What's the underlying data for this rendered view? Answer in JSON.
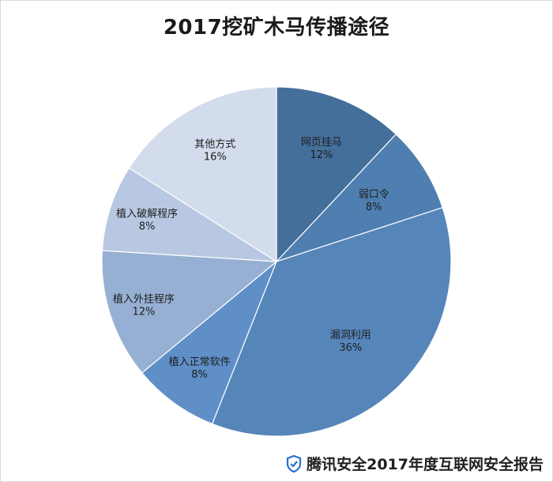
{
  "chart_data": {
    "type": "pie",
    "title": "2017挖矿木马传播途径",
    "slices": [
      {
        "name": "网页挂马",
        "value": 12,
        "label": "12%",
        "color": "#456f9b"
      },
      {
        "name": "弱口令",
        "value": 8,
        "label": "8%",
        "color": "#4f7fb0"
      },
      {
        "name": "漏洞利用",
        "value": 36,
        "label": "36%",
        "color": "#5685ba"
      },
      {
        "name": "植入正常软件",
        "value": 8,
        "label": "8%",
        "color": "#5f8fc6"
      },
      {
        "name": "植入外挂程序",
        "value": 12,
        "label": "12%",
        "color": "#96b0d3"
      },
      {
        "name": "植入破解程序",
        "value": 8,
        "label": "8%",
        "color": "#b8c8e3"
      },
      {
        "name": "其他方式",
        "value": 16,
        "label": "16%",
        "color": "#d2dcec"
      }
    ]
  },
  "footer": {
    "brand": "腾讯安全2017年度互联网安全报告",
    "shield_color": "#2a6fd1"
  }
}
